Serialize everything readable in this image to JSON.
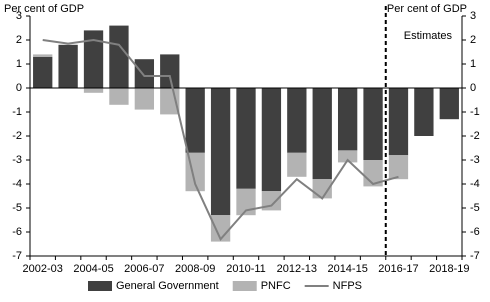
{
  "chart_data": {
    "type": "bar",
    "y_label": "Per cent of GDP",
    "y2_label": "Per cent of GDP",
    "annotation": "Estimates",
    "categories": [
      "2002-03",
      null,
      "2004-05",
      null,
      "2006-07",
      null,
      "2008-09",
      null,
      "2010-11",
      null,
      "2012-13",
      null,
      "2014-15",
      null,
      "2016-17",
      null,
      "2018-19"
    ],
    "series": [
      {
        "name": "General Government",
        "type": "bar",
        "color": "#404040",
        "values": [
          1.3,
          1.8,
          2.4,
          2.6,
          1.2,
          1.4,
          -2.7,
          -5.3,
          -4.2,
          -4.3,
          -2.7,
          -3.8,
          -2.6,
          -3.0,
          -2.8,
          -2.0,
          -1.3
        ]
      },
      {
        "name": "PNFC",
        "type": "bar",
        "color": "#b3b3b3",
        "values": [
          0.1,
          0.0,
          -0.2,
          -0.7,
          -0.9,
          -1.1,
          -1.6,
          -1.1,
          -1.1,
          -0.8,
          -1.0,
          -0.8,
          -0.5,
          -1.1,
          -1.0,
          null,
          null
        ]
      },
      {
        "name": "NFPS",
        "type": "line",
        "color": "#808080",
        "values": [
          2.0,
          1.85,
          2.0,
          1.8,
          0.5,
          0.5,
          -4.0,
          -6.3,
          -5.1,
          -4.9,
          -3.8,
          -4.6,
          -3.0,
          -4.0,
          -3.7,
          null,
          null
        ]
      }
    ],
    "ylim": [
      -7,
      3
    ],
    "yticks": [
      -7,
      -6,
      -5,
      -4,
      -3,
      -2,
      -1,
      0,
      1,
      2,
      3
    ],
    "y2lim": [
      -7,
      3
    ],
    "y2ticks": [
      -7,
      -6,
      -5,
      -4,
      -3,
      -2,
      -1,
      0,
      1,
      2,
      3
    ],
    "legend": "bottom"
  }
}
